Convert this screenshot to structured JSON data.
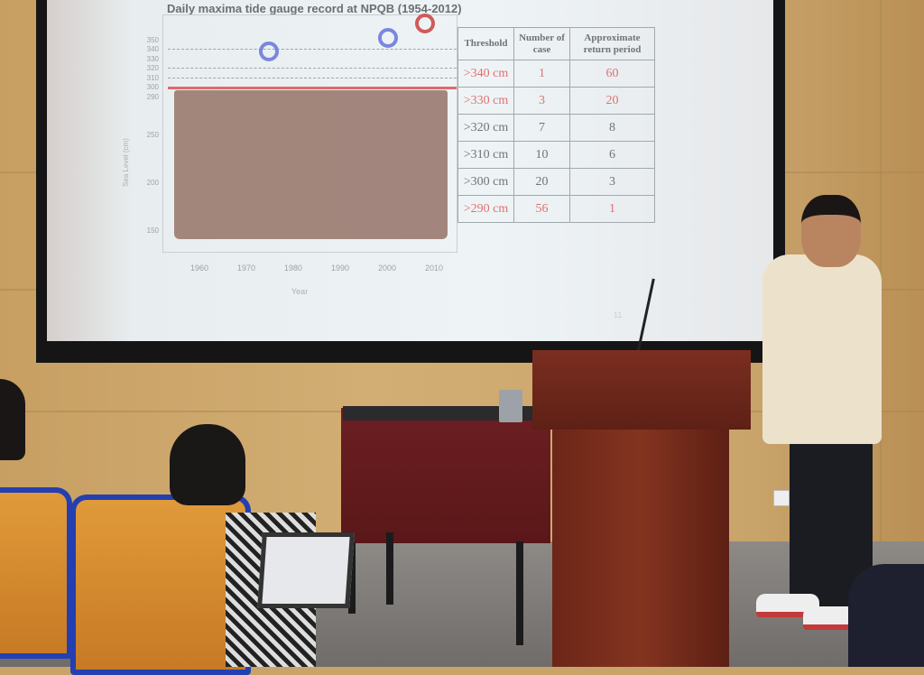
{
  "slide": {
    "title": "Daily maxima tide gauge record at NPQB (1954-2012)",
    "y_axis_label": "Sea Level (cm)",
    "x_axis_label": "Year",
    "y_ticks": [
      "350",
      "340",
      "330",
      "320",
      "310",
      "300",
      "290",
      "250",
      "200",
      "150"
    ],
    "x_ticks": [
      "1960",
      "1970",
      "1980",
      "1990",
      "2000",
      "2010"
    ],
    "threshold_line_cm": 290,
    "colors": {
      "points": "#9b7d72",
      "threshold_line": "#e06a6a",
      "highlight_blue": "#7b86e0",
      "highlight_red": "#d05a5a"
    },
    "table": {
      "headers": [
        "Threshold",
        "Number of case",
        "Approximate return period"
      ],
      "rows": [
        {
          "threshold": ">340 cm",
          "cases": "1",
          "period": "60",
          "highlight": true
        },
        {
          "threshold": ">330 cm",
          "cases": "3",
          "period": "20",
          "highlight": true
        },
        {
          "threshold": ">320 cm",
          "cases": "7",
          "period": "8",
          "highlight": false
        },
        {
          "threshold": ">310 cm",
          "cases": "10",
          "period": "6",
          "highlight": false
        },
        {
          "threshold": ">300 cm",
          "cases": "20",
          "period": "3",
          "highlight": false
        },
        {
          "threshold": ">290 cm",
          "cases": "56",
          "period": "1",
          "highlight": true
        }
      ]
    },
    "page_number": "11"
  }
}
